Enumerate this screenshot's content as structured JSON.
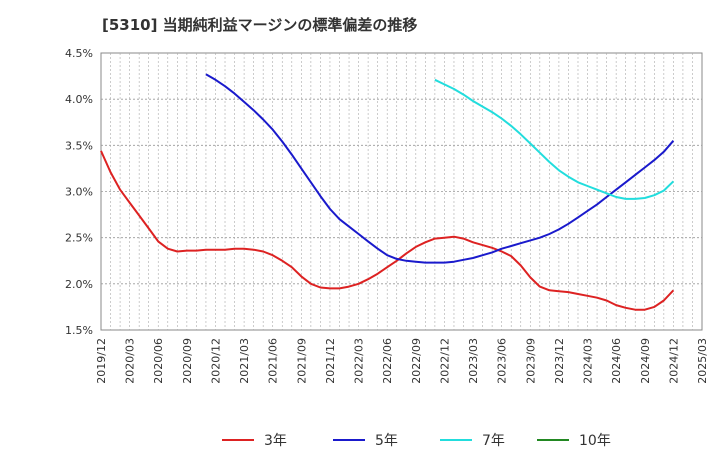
{
  "title": "[5310]  当期純利益マージンの標準偏差の推移",
  "chart_data": {
    "type": "line",
    "title": "[5310]  当期純利益マージンの標準偏差の推移",
    "ylim": [
      1.5,
      4.5
    ],
    "yticks": [
      "4.5%",
      "4.0%",
      "3.5%",
      "3.0%",
      "2.5%",
      "2.0%",
      "1.5%"
    ],
    "ytick_values": [
      4.5,
      4.0,
      3.5,
      3.0,
      2.5,
      2.0,
      1.5
    ],
    "xticks": [
      "2019/12",
      "2020/03",
      "2020/06",
      "2020/09",
      "2020/12",
      "2021/03",
      "2021/06",
      "2021/09",
      "2021/12",
      "2022/03",
      "2022/06",
      "2022/09",
      "2022/12",
      "2023/03",
      "2023/06",
      "2023/09",
      "2023/12",
      "2024/03",
      "2024/06",
      "2024/09",
      "2024/12",
      "2025/03"
    ],
    "grid": true,
    "legend_position": "bottom",
    "series": [
      {
        "name": "3年",
        "color": "#dd2222",
        "x": [
          "2019/12",
          "2020/01",
          "2020/02",
          "2020/03",
          "2020/04",
          "2020/05",
          "2020/06",
          "2020/07",
          "2020/08",
          "2020/09",
          "2020/10",
          "2020/11",
          "2020/12",
          "2021/01",
          "2021/02",
          "2021/03",
          "2021/04",
          "2021/05",
          "2021/06",
          "2021/07",
          "2021/08",
          "2021/09",
          "2021/10",
          "2021/11",
          "2021/12",
          "2022/01",
          "2022/02",
          "2022/03",
          "2022/04",
          "2022/05",
          "2022/06",
          "2022/07",
          "2022/08",
          "2022/09",
          "2022/10",
          "2022/11",
          "2022/12",
          "2023/01",
          "2023/02",
          "2023/03",
          "2023/04",
          "2023/05",
          "2023/06",
          "2023/07",
          "2023/08",
          "2023/09",
          "2023/10",
          "2023/11",
          "2023/12",
          "2024/01",
          "2024/02",
          "2024/03",
          "2024/04",
          "2024/05",
          "2024/06",
          "2024/07",
          "2024/08",
          "2024/09",
          "2024/10",
          "2024/11",
          "2024/12"
        ],
        "values": [
          3.44,
          3.21,
          3.02,
          2.88,
          2.74,
          2.6,
          2.46,
          2.38,
          2.35,
          2.36,
          2.36,
          2.37,
          2.37,
          2.37,
          2.38,
          2.38,
          2.37,
          2.35,
          2.31,
          2.25,
          2.18,
          2.08,
          2.0,
          1.96,
          1.95,
          1.95,
          1.97,
          2.0,
          2.05,
          2.11,
          2.18,
          2.25,
          2.33,
          2.4,
          2.45,
          2.49,
          2.5,
          2.51,
          2.49,
          2.45,
          2.42,
          2.39,
          2.35,
          2.3,
          2.2,
          2.07,
          1.97,
          1.93,
          1.92,
          1.91,
          1.89,
          1.87,
          1.85,
          1.82,
          1.77,
          1.74,
          1.72,
          1.72,
          1.75,
          1.82,
          1.93
        ]
      },
      {
        "name": "5年",
        "color": "#1a1acc",
        "x": [
          "2020/11",
          "2020/12",
          "2021/01",
          "2021/02",
          "2021/03",
          "2021/04",
          "2021/05",
          "2021/06",
          "2021/07",
          "2021/08",
          "2021/09",
          "2021/10",
          "2021/11",
          "2021/12",
          "2022/01",
          "2022/02",
          "2022/03",
          "2022/04",
          "2022/05",
          "2022/06",
          "2022/07",
          "2022/08",
          "2022/09",
          "2022/10",
          "2022/11",
          "2022/12",
          "2023/01",
          "2023/02",
          "2023/03",
          "2023/04",
          "2023/05",
          "2023/06",
          "2023/07",
          "2023/08",
          "2023/09",
          "2023/10",
          "2023/11",
          "2023/12",
          "2024/01",
          "2024/02",
          "2024/03",
          "2024/04",
          "2024/05",
          "2024/06",
          "2024/07",
          "2024/08",
          "2024/09",
          "2024/10",
          "2024/11",
          "2024/12"
        ],
        "values": [
          4.27,
          4.21,
          4.14,
          4.06,
          3.97,
          3.88,
          3.78,
          3.67,
          3.54,
          3.4,
          3.25,
          3.1,
          2.95,
          2.81,
          2.7,
          2.62,
          2.54,
          2.46,
          2.38,
          2.31,
          2.27,
          2.25,
          2.24,
          2.23,
          2.23,
          2.23,
          2.24,
          2.26,
          2.28,
          2.31,
          2.34,
          2.38,
          2.41,
          2.44,
          2.47,
          2.5,
          2.54,
          2.59,
          2.65,
          2.72,
          2.79,
          2.86,
          2.94,
          3.02,
          3.1,
          3.18,
          3.26,
          3.34,
          3.43,
          3.55
        ]
      },
      {
        "name": "7年",
        "color": "#22dddd",
        "x": [
          "2022/11",
          "2022/12",
          "2023/01",
          "2023/02",
          "2023/03",
          "2023/04",
          "2023/05",
          "2023/06",
          "2023/07",
          "2023/08",
          "2023/09",
          "2023/10",
          "2023/11",
          "2023/12",
          "2024/01",
          "2024/02",
          "2024/03",
          "2024/04",
          "2024/05",
          "2024/06",
          "2024/07",
          "2024/08",
          "2024/09",
          "2024/10",
          "2024/11",
          "2024/12"
        ],
        "values": [
          4.21,
          4.16,
          4.11,
          4.05,
          3.98,
          3.92,
          3.86,
          3.79,
          3.71,
          3.62,
          3.52,
          3.42,
          3.32,
          3.23,
          3.16,
          3.1,
          3.06,
          3.02,
          2.98,
          2.94,
          2.92,
          2.92,
          2.93,
          2.96,
          3.01,
          3.11
        ]
      },
      {
        "name": "10年",
        "color": "#228822",
        "x": [],
        "values": []
      }
    ]
  }
}
